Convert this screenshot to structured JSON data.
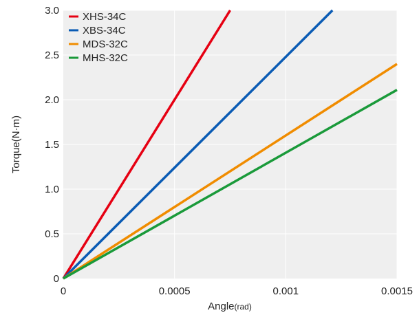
{
  "chart_data": {
    "type": "line",
    "xlabel": "Angle",
    "xlabel_unit": "(rad)",
    "ylabel": "Torque",
    "ylabel_unit": "(N·m)",
    "xlim": [
      0,
      0.0015
    ],
    "ylim": [
      0,
      3.0
    ],
    "x_ticks": [
      0,
      0.0005,
      0.001,
      0.0015
    ],
    "x_tick_labels": [
      "0",
      "0.0005",
      "0.001",
      "0.0015"
    ],
    "y_ticks": [
      0,
      0.5,
      1.0,
      1.5,
      2.0,
      2.5,
      3.0
    ],
    "y_tick_labels": [
      "0",
      "0.5",
      "1.0",
      "1.5",
      "2.0",
      "2.5",
      "3.0"
    ],
    "grid": true,
    "legend_position": "top-left",
    "plot_background": "#efefef",
    "series": [
      {
        "name": "XHS-34C",
        "color": "#e60012",
        "x": [
          0,
          0.00075
        ],
        "y": [
          0,
          3.0
        ]
      },
      {
        "name": "XBS-34C",
        "color": "#0a5bb4",
        "x": [
          0,
          0.00121
        ],
        "y": [
          0,
          3.0
        ]
      },
      {
        "name": "MDS-32C",
        "color": "#f08c00",
        "x": [
          0,
          0.0015
        ],
        "y": [
          0,
          2.4
        ]
      },
      {
        "name": "MHS-32C",
        "color": "#1a9a3a",
        "x": [
          0,
          0.0015
        ],
        "y": [
          0,
          2.11
        ]
      }
    ]
  }
}
